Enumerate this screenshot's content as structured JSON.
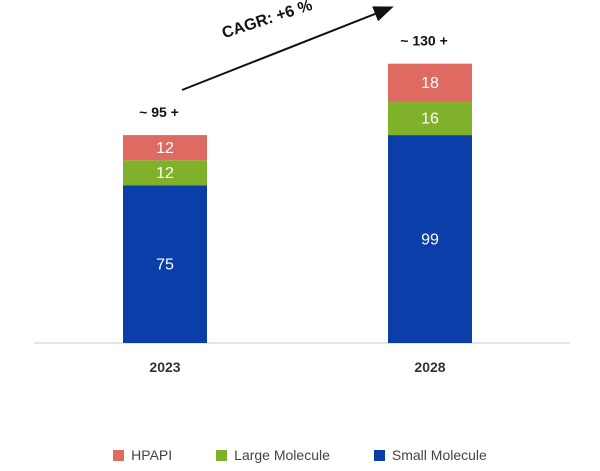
{
  "chart_data": {
    "type": "bar",
    "stacked": true,
    "categories": [
      "2023",
      "2028"
    ],
    "series": [
      {
        "name": "Small Molecule",
        "values": [
          75,
          99
        ],
        "color": "#0b3ea9"
      },
      {
        "name": "Large Molecule",
        "values": [
          12,
          16
        ],
        "color": "#7fb22a"
      },
      {
        "name": "HPAPI",
        "values": [
          12,
          18
        ],
        "color": "#de6a62"
      }
    ],
    "totals": [
      "~ 95 +",
      "~ 130 +"
    ],
    "annotation": "CAGR: +6 %",
    "legend_order": [
      "HPAPI",
      "Large Molecule",
      "Small Molecule"
    ],
    "ylim": [
      0,
      145
    ],
    "legend_position": "bottom"
  }
}
